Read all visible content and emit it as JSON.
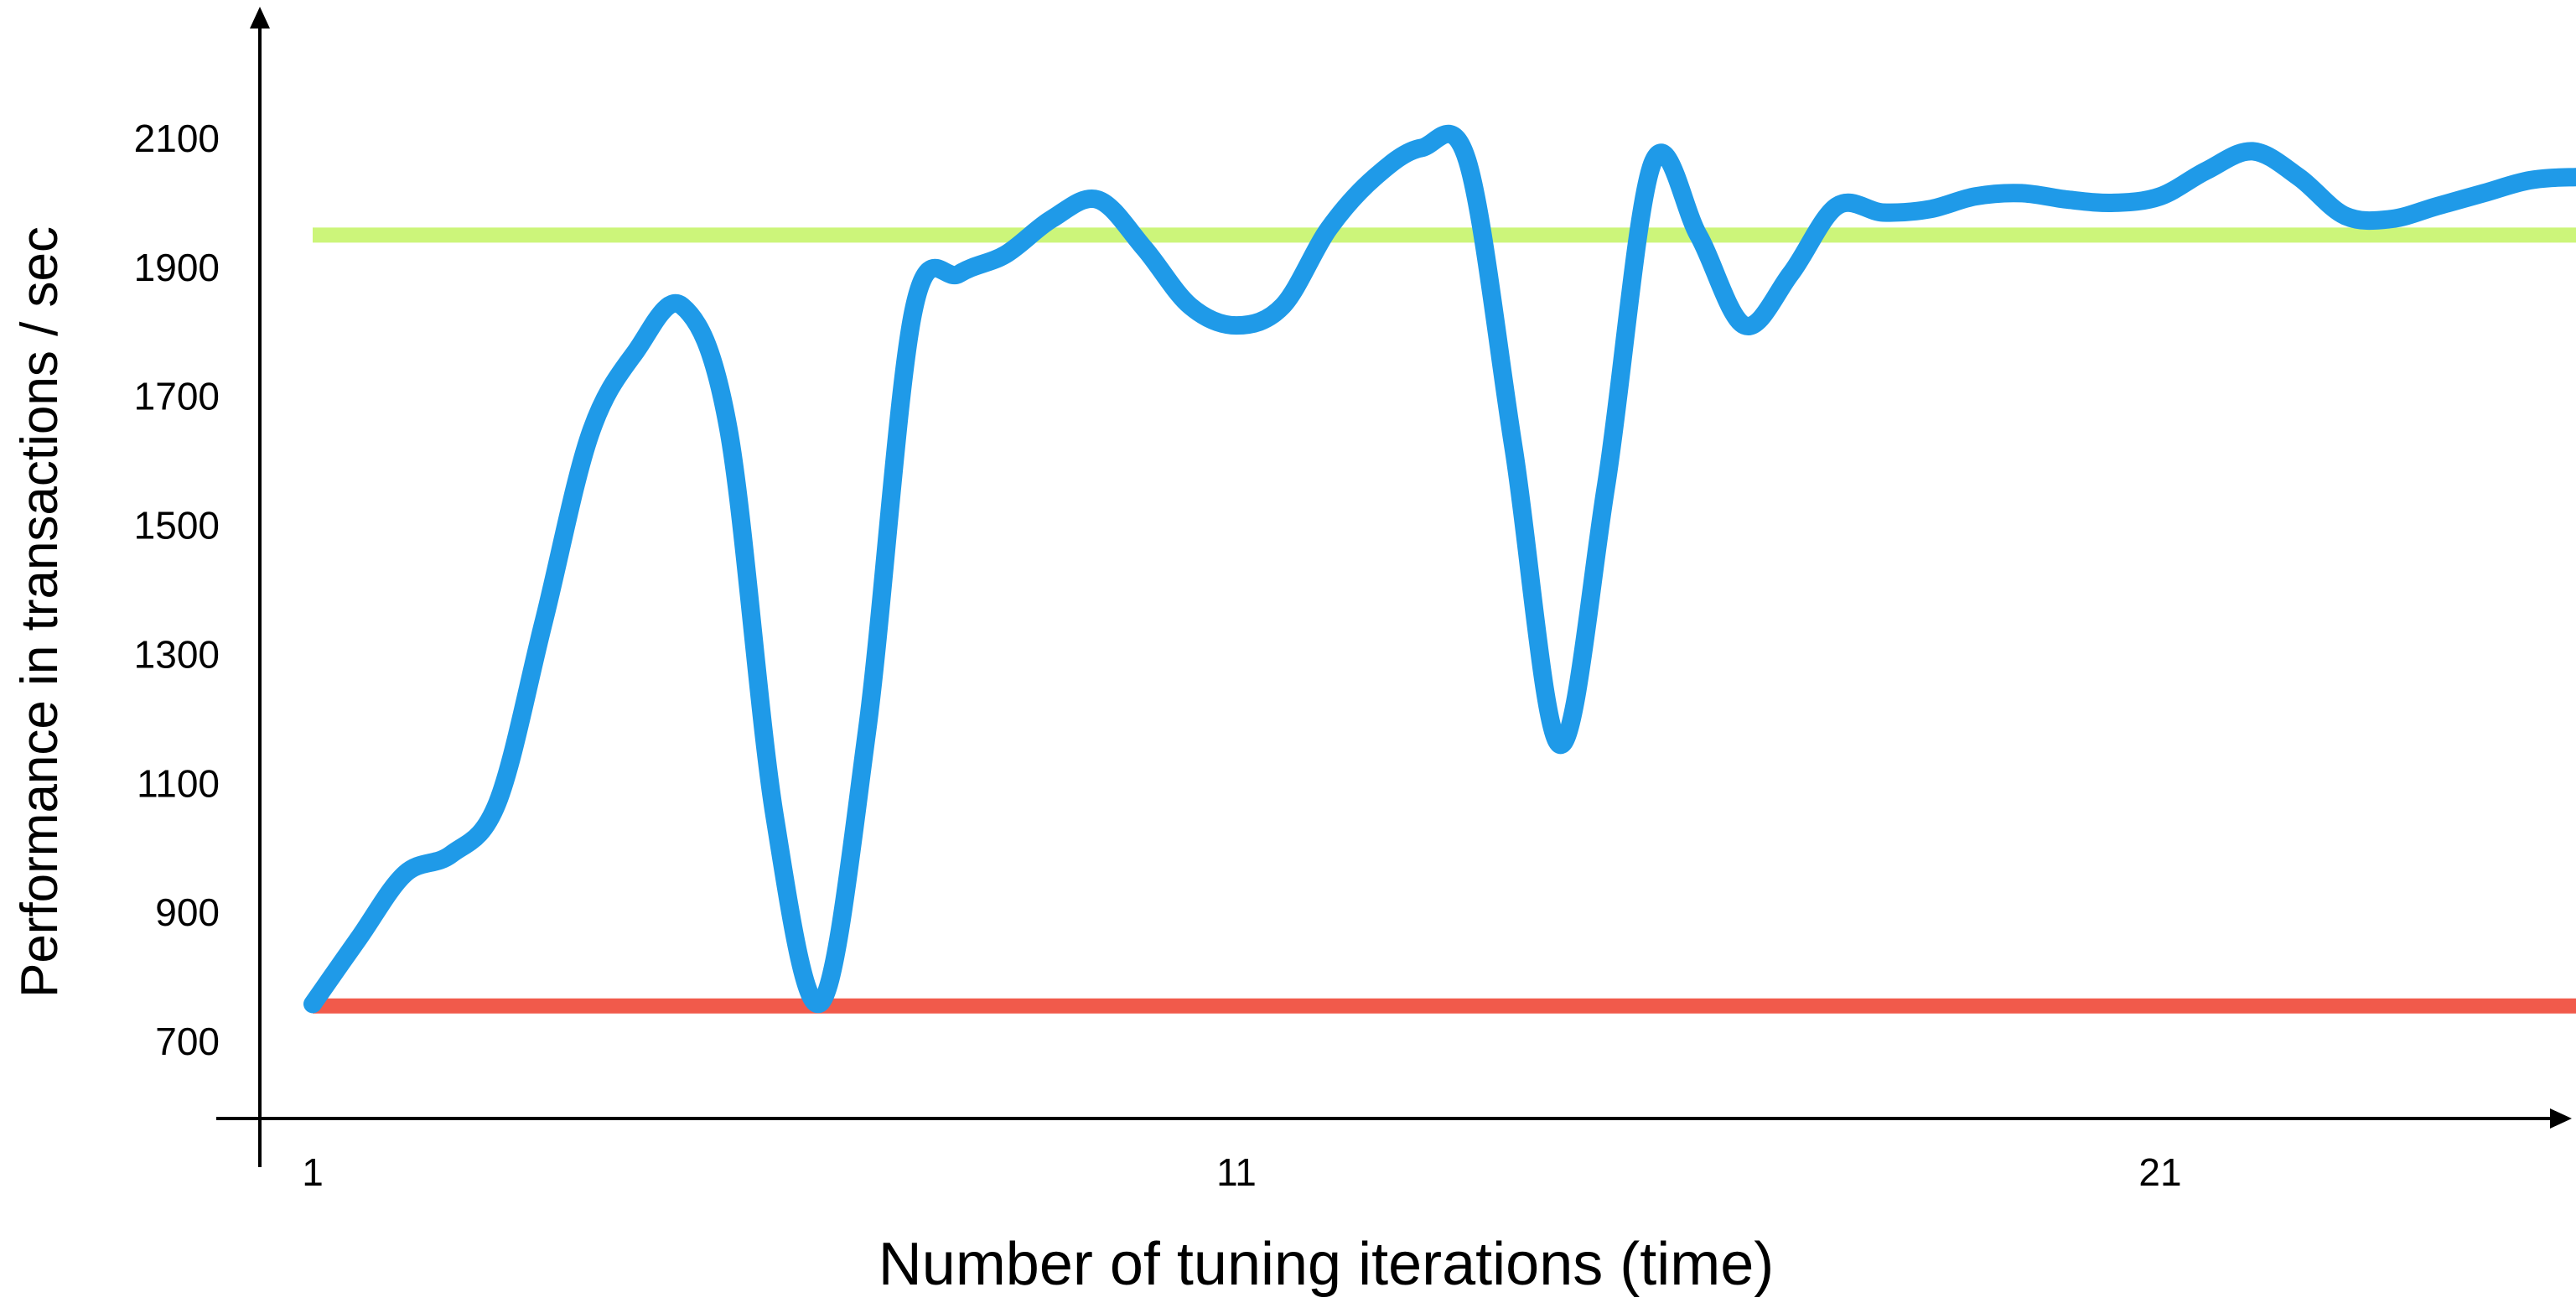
{
  "chart_data": {
    "type": "line",
    "title": "",
    "xlabel": "Number of tuning iterations (time)",
    "ylabel": "Performance in transactions / sec",
    "xlim": [
      0.45,
      26.1
    ],
    "ylim": [
      575,
      2285
    ],
    "x_ticks": [
      1,
      11,
      21
    ],
    "x_tick_labels": [
      "1",
      "11",
      "21"
    ],
    "y_ticks": [
      700,
      900,
      1100,
      1300,
      1500,
      1700,
      1900,
      2100
    ],
    "y_tick_labels": [
      "700",
      "900",
      "1100",
      "1300",
      "1500",
      "1700",
      "1900",
      "2100"
    ],
    "grid": false,
    "legend": "none",
    "reference_lines": [
      {
        "y": 1950,
        "x_range": [
          1,
          26.1
        ],
        "color": "#ccf57a"
      },
      {
        "y": 755,
        "x_range": [
          1,
          26.1
        ],
        "color": "#f15a4b"
      }
    ],
    "series": [
      {
        "color": "#1f9ae8",
        "x": [
          1,
          1.5,
          2,
          2.5,
          3,
          3.5,
          4,
          4.5,
          5,
          5.5,
          6,
          6.5,
          7,
          7.5,
          8,
          8.5,
          9,
          9.5,
          10,
          10.5,
          11,
          11.5,
          12,
          12.5,
          13,
          13.5,
          14,
          14.5,
          15,
          15.5,
          16,
          16.5,
          17,
          17.5,
          18,
          18.5,
          19,
          19.5,
          20,
          20.5,
          21,
          21.5,
          22,
          22.5,
          23,
          23.5,
          24,
          24.5,
          25,
          25.5,
          26.1
        ],
        "y": [
          758,
          860,
          960,
          990,
          1070,
          1350,
          1640,
          1770,
          1840,
          1650,
          1050,
          760,
          1180,
          1830,
          1890,
          1920,
          1975,
          2005,
          1930,
          1840,
          1810,
          1840,
          1960,
          2040,
          2085,
          2065,
          1620,
          1160,
          1560,
          2060,
          1950,
          1810,
          1890,
          1995,
          1985,
          1990,
          2010,
          2015,
          2005,
          2000,
          2010,
          2050,
          2080,
          2040,
          1980,
          1975,
          1995,
          2015,
          2035,
          2040,
          2040
        ]
      }
    ]
  }
}
